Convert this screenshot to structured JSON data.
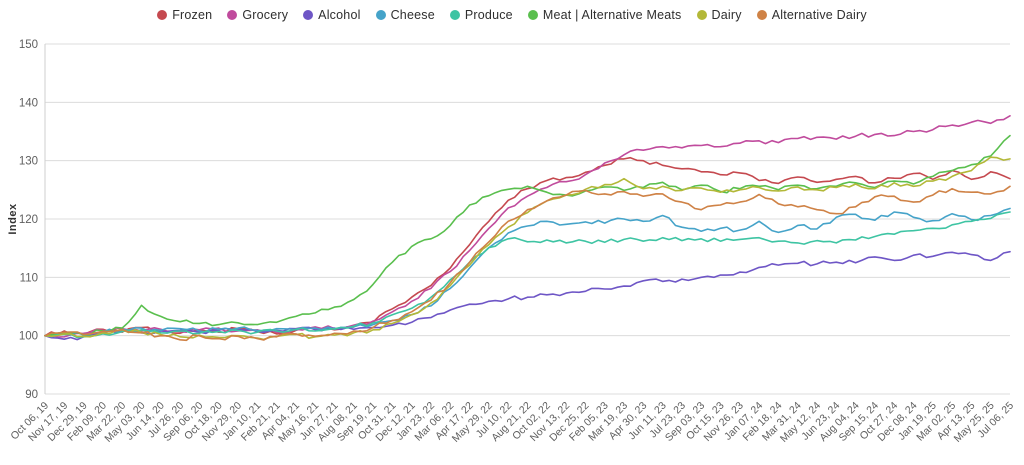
{
  "chart_data": {
    "type": "line",
    "title": "",
    "xlabel": "",
    "ylabel": "Index",
    "ylim": [
      90,
      150
    ],
    "yticks": [
      90,
      100,
      110,
      120,
      130,
      140,
      150
    ],
    "grid": true,
    "legend_position": "top",
    "categories": [
      "Oct 06, 19",
      "Nov 17, 19",
      "Dec 29, 19",
      "Feb 09, 20",
      "Mar 22, 20",
      "May 03, 20",
      "Jun 14, 20",
      "Jul 26, 20",
      "Sep 06, 20",
      "Oct 18, 20",
      "Nov 29, 20",
      "Jan 10, 21",
      "Feb 21, 21",
      "Apr 04, 21",
      "May 16, 21",
      "Jun 27, 21",
      "Aug 08, 21",
      "Sep 19, 21",
      "Oct 31, 21",
      "Dec 12, 21",
      "Jan 23, 22",
      "Mar 06, 22",
      "Apr 17, 22",
      "May 29, 22",
      "Jul 10, 22",
      "Aug 21, 22",
      "Oct 02, 22",
      "Nov 13, 22",
      "Dec 25, 22",
      "Feb 05, 23",
      "Mar 19, 23",
      "Apr 30, 23",
      "Jun 11, 23",
      "Jul 23, 23",
      "Sep 03, 23",
      "Oct 15, 23",
      "Nov 26, 23",
      "Jan 07, 24",
      "Feb 18, 24",
      "Mar 31, 24",
      "May 12, 24",
      "Jun 23, 24",
      "Aug 04, 24",
      "Sep 15, 24",
      "Oct 27, 24",
      "Dec 08, 24",
      "Jan 19, 25",
      "Mar 02, 25",
      "Apr 13, 25",
      "May 25, 25",
      "Jul 06, 25"
    ],
    "series": [
      {
        "name": "Frozen",
        "color": "#c5494f",
        "values": [
          100,
          100.8,
          100.2,
          101.1,
          100.6,
          101.4,
          100.9,
          100.4,
          101.0,
          100.6,
          101.2,
          100.7,
          100.3,
          100.9,
          101.3,
          101.0,
          101.5,
          102.3,
          104.6,
          106.6,
          108.6,
          111.6,
          115.6,
          119.6,
          123.2,
          125.2,
          126.6,
          127.1,
          128.0,
          129.2,
          130.3,
          130.0,
          129.2,
          128.6,
          128.1,
          127.6,
          127.9,
          126.6,
          126.1,
          127.2,
          126.3,
          126.8,
          127.3,
          126.2,
          127.0,
          127.8,
          126.8,
          128.3,
          126.8,
          128.1,
          126.9
        ]
      },
      {
        "name": "Grocery",
        "color": "#c04b9d",
        "values": [
          100,
          99.8,
          100.4,
          100.9,
          101.2,
          100.8,
          101.1,
          100.7,
          101.0,
          101.3,
          100.8,
          101.0,
          100.6,
          101.1,
          101.5,
          101.2,
          101.8,
          102.5,
          104.1,
          105.9,
          108.1,
          111.0,
          114.6,
          118.4,
          121.9,
          123.9,
          125.4,
          126.4,
          127.6,
          129.6,
          131.0,
          131.8,
          132.4,
          132.2,
          132.6,
          132.4,
          133.0,
          133.4,
          133.1,
          133.8,
          134.0,
          133.7,
          134.2,
          134.5,
          134.3,
          135.0,
          135.3,
          136.1,
          136.6,
          136.4,
          137.7
        ]
      },
      {
        "name": "Alcohol",
        "color": "#6e56c6",
        "values": [
          100,
          99.4,
          99.8,
          100.4,
          100.9,
          100.5,
          100.8,
          100.9,
          100.6,
          100.9,
          101.1,
          100.7,
          100.9,
          101.2,
          101.0,
          101.3,
          101.1,
          101.4,
          101.8,
          102.3,
          103.1,
          104.4,
          105.4,
          105.9,
          106.3,
          106.6,
          107.0,
          107.3,
          107.6,
          108.0,
          108.5,
          109.4,
          109.3,
          109.7,
          110.0,
          110.4,
          110.9,
          111.7,
          112.1,
          112.4,
          112.3,
          112.6,
          112.5,
          113.5,
          112.9,
          113.8,
          113.6,
          114.3,
          113.9,
          112.9,
          114.4
        ]
      },
      {
        "name": "Cheese",
        "color": "#45a3c9",
        "values": [
          100,
          100.4,
          100.1,
          100.6,
          101.1,
          101.3,
          100.9,
          101.2,
          100.8,
          101.1,
          101.3,
          100.9,
          101.2,
          101.0,
          101.3,
          101.1,
          101.5,
          101.9,
          102.6,
          103.6,
          105.1,
          108.1,
          111.6,
          115.1,
          117.6,
          118.8,
          119.6,
          119.1,
          119.5,
          119.3,
          120.0,
          119.6,
          120.6,
          118.6,
          117.9,
          118.4,
          118.1,
          119.6,
          117.7,
          118.9,
          118.3,
          120.3,
          120.8,
          119.8,
          121.2,
          120.3,
          119.7,
          120.9,
          119.9,
          120.6,
          121.8
        ]
      },
      {
        "name": "Produce",
        "color": "#3ec4a3",
        "values": [
          100,
          100.2,
          99.8,
          100.3,
          100.7,
          101.0,
          100.5,
          100.8,
          100.4,
          100.7,
          100.9,
          100.6,
          100.8,
          101.1,
          100.8,
          101.2,
          101.6,
          102.2,
          103.6,
          104.7,
          106.6,
          109.6,
          112.6,
          115.1,
          116.6,
          116.1,
          116.4,
          115.9,
          116.2,
          116.0,
          116.5,
          116.2,
          116.8,
          116.3,
          116.6,
          116.2,
          116.5,
          116.8,
          116.2,
          115.9,
          116.3,
          115.9,
          116.4,
          117.0,
          117.4,
          118.0,
          118.4,
          119.0,
          119.6,
          120.1,
          121.2
        ]
      },
      {
        "name": "Meat | Alternative Meats",
        "color": "#5abf4e",
        "values": [
          100,
          100.5,
          100.2,
          100.8,
          101.3,
          105.2,
          103.3,
          102.4,
          102.1,
          101.9,
          102.2,
          101.9,
          102.3,
          103.3,
          103.9,
          104.9,
          106.2,
          108.8,
          112.6,
          115.3,
          116.6,
          118.9,
          122.4,
          124.0,
          125.1,
          125.6,
          124.6,
          124.1,
          124.8,
          125.5,
          124.9,
          125.4,
          126.3,
          125.0,
          125.8,
          124.7,
          125.2,
          125.6,
          125.0,
          125.8,
          125.2,
          125.6,
          126.2,
          125.4,
          126.5,
          126.0,
          127.3,
          128.3,
          129.3,
          130.8,
          134.3
        ]
      },
      {
        "name": "Dairy",
        "color": "#b3b838",
        "values": [
          100,
          100.3,
          99.9,
          100.5,
          101.0,
          100.6,
          100.2,
          99.8,
          100.1,
          99.7,
          100.0,
          99.6,
          99.9,
          100.2,
          99.8,
          100.1,
          100.5,
          101.0,
          102.1,
          103.6,
          105.6,
          108.6,
          112.1,
          115.6,
          118.6,
          121.1,
          123.1,
          124.1,
          125.1,
          125.9,
          126.9,
          125.2,
          125.6,
          124.9,
          125.3,
          124.6,
          125.0,
          125.4,
          124.8,
          125.5,
          125.0,
          125.4,
          126.0,
          125.2,
          126.2,
          125.6,
          126.5,
          127.3,
          128.3,
          130.6,
          130.3
        ]
      },
      {
        "name": "Alternative Dairy",
        "color": "#cf8246",
        "values": [
          100,
          100.6,
          100.2,
          100.7,
          101.1,
          100.5,
          100.0,
          99.3,
          100.0,
          99.5,
          99.9,
          99.5,
          99.8,
          100.3,
          99.9,
          100.4,
          100.8,
          101.4,
          102.6,
          104.1,
          106.1,
          109.1,
          112.6,
          116.1,
          119.6,
          121.6,
          123.1,
          124.1,
          124.9,
          124.3,
          124.7,
          123.9,
          124.3,
          122.9,
          121.6,
          122.4,
          122.9,
          124.2,
          122.6,
          122.1,
          121.6,
          120.9,
          122.1,
          123.8,
          123.9,
          122.9,
          124.1,
          125.2,
          124.6,
          124.3,
          125.6
        ]
      }
    ]
  }
}
